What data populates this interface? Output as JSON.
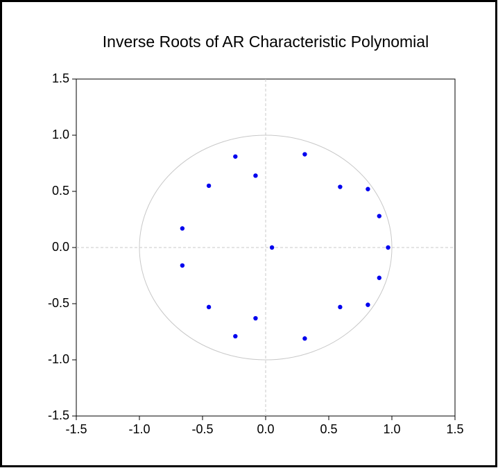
{
  "chart_data": {
    "type": "scatter",
    "title": "Inverse Roots of AR Characteristic Polynomial",
    "color": "#0000ee",
    "unit_circle": {
      "radius": 1,
      "color": "#c8c8c8"
    },
    "zero_lines": true,
    "x": [
      -0.24,
      -0.08,
      0.31,
      0.59,
      0.81,
      0.9,
      0.97,
      0.05,
      -0.45,
      -0.66,
      -0.66,
      -0.45,
      -0.08,
      -0.24,
      0.31,
      0.59,
      0.81,
      0.9
    ],
    "values": [
      0.81,
      0.64,
      0.83,
      0.54,
      0.52,
      0.28,
      0.0,
      0.0,
      0.55,
      0.17,
      -0.16,
      -0.53,
      -0.63,
      -0.79,
      -0.81,
      -0.53,
      -0.51,
      -0.27
    ],
    "xlim": [
      -1.5,
      1.5
    ],
    "ylim": [
      -1.5,
      1.5
    ],
    "xticks": [
      -1.5,
      {
        "value": -1,
        "label": "-1.0"
      },
      -0.5,
      {
        "value": 0,
        "label": "0.0"
      },
      0.5,
      {
        "value": 1,
        "label": "1.0"
      },
      1.5
    ],
    "yticks": [
      -1.5,
      {
        "value": -1,
        "label": "-1.0"
      },
      -0.5,
      {
        "value": 0,
        "label": "0.0"
      },
      0.5,
      {
        "value": 1,
        "label": "1.0"
      },
      1.5
    ]
  }
}
